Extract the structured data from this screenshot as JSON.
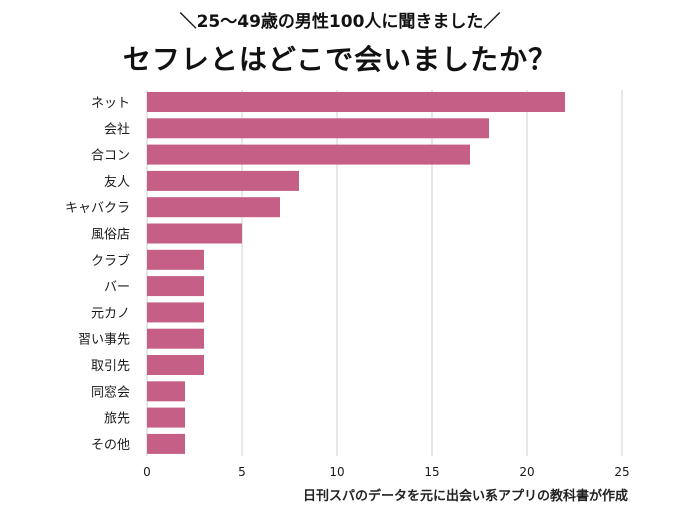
{
  "header": {
    "subtitle": "＼25〜49歳の男性100人に聞きました／",
    "title": "セフレとはどこで会いましたか？"
  },
  "source_note": "日刊スパのデータを元に出会い系アプリの教科書が作成",
  "colors": {
    "bar": "#c55f86",
    "grid": "#cfcfcf",
    "text": "#1a1a1a"
  },
  "chart_data": {
    "type": "bar",
    "orientation": "horizontal",
    "title": "セフレとはどこで会いましたか？",
    "subtitle": "＼25〜49歳の男性100人に聞きました／",
    "categories": [
      "ネット",
      "会社",
      "合コン",
      "友人",
      "キャバクラ",
      "風俗店",
      "クラブ",
      "バー",
      "元カノ",
      "習い事先",
      "取引先",
      "同窓会",
      "旅先",
      "その他"
    ],
    "values": [
      22,
      18,
      17,
      8,
      7,
      5,
      3,
      3,
      3,
      3,
      3,
      2,
      2,
      2
    ],
    "xlim": [
      0,
      25
    ],
    "xticks": [
      0,
      5,
      10,
      15,
      20,
      25
    ],
    "grid": "vertical",
    "legend": "none"
  }
}
